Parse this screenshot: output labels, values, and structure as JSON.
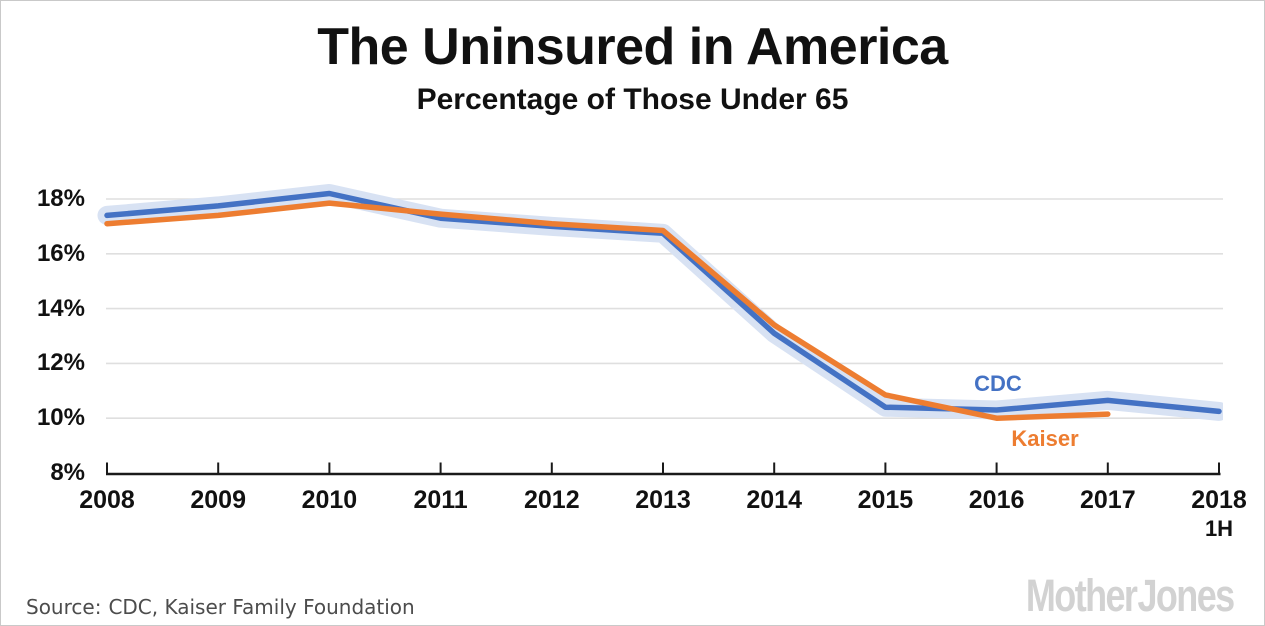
{
  "header": {
    "title": "The Uninsured in America",
    "subtitle": "Percentage of Those Under 65"
  },
  "footer": {
    "source_label": "Source:",
    "source_body": "CDC, Kaiser Family Foundation",
    "logo": "Mother Jones"
  },
  "chart_data": {
    "type": "line",
    "title": "The Uninsured in America",
    "subtitle": "Percentage of Those Under 65",
    "categories": [
      "2008",
      "2009",
      "2010",
      "2011",
      "2012",
      "2013",
      "2014",
      "2015",
      "2016",
      "2017",
      "2018"
    ],
    "last_category_sub_label": "1H",
    "series": [
      {
        "name": "CDC",
        "color": "#4472c4",
        "halo_color": "#d8e2f3",
        "values": [
          17.4,
          17.75,
          18.2,
          17.3,
          17.0,
          16.75,
          13.1,
          10.4,
          10.3,
          10.65,
          10.25
        ]
      },
      {
        "name": "Kaiser",
        "color": "#ed7d31",
        "values": [
          17.1,
          17.4,
          17.85,
          17.45,
          17.1,
          16.85,
          13.4,
          10.85,
          10.0,
          10.15,
          null
        ]
      }
    ],
    "ylim": [
      8,
      18
    ],
    "yticks": [
      8,
      10,
      12,
      14,
      16,
      18
    ],
    "ytick_suffix": "%",
    "xlabel": "",
    "ylabel": "",
    "grid": "horizontal",
    "legend": "inline-annotations",
    "annotations": [
      {
        "text": "CDC",
        "color": "#4472c4"
      },
      {
        "text": "Kaiser",
        "color": "#ed7d31"
      }
    ],
    "axis_color": "#1a1a1a",
    "grid_color": "#dfdfdf"
  }
}
